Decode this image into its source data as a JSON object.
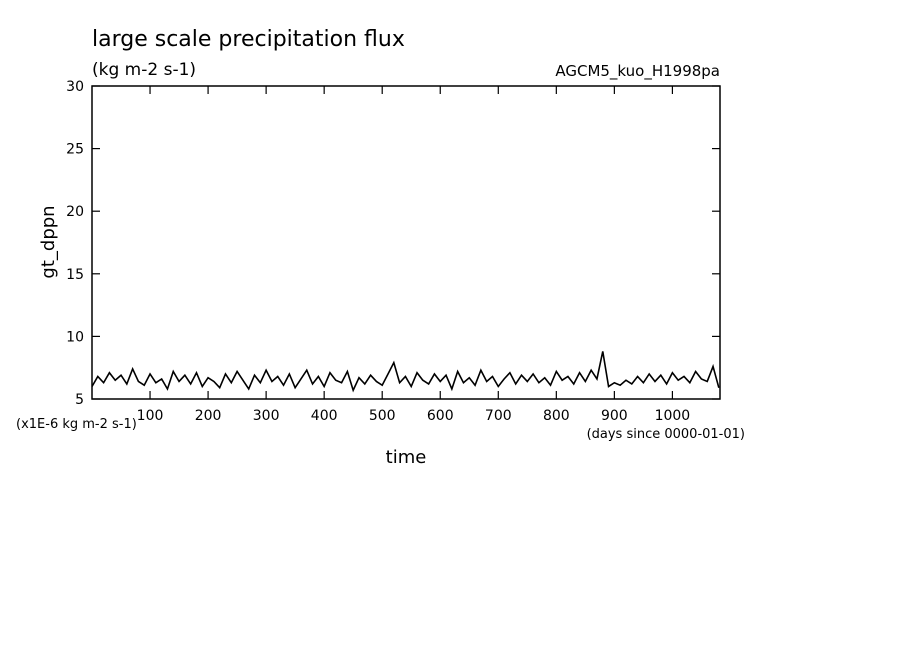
{
  "chart_data": {
    "type": "line",
    "title": "large scale precipitation flux",
    "subtitle": "(kg m-2 s-1)",
    "annotation": "AGCM5_kuo_H1998pa",
    "y_label": "gt_dppn",
    "x_label": "time",
    "y_unit_label": "(x1E-6 kg m-2 s-1)",
    "x_unit_label": "(days since 0000-01-01)",
    "xlim": [
      0,
      1082
    ],
    "ylim": [
      5,
      30
    ],
    "xticks": [
      100,
      200,
      300,
      400,
      500,
      600,
      700,
      800,
      900,
      1000
    ],
    "yticks": [
      5,
      10,
      15,
      20,
      25,
      30
    ],
    "color": "#000000",
    "x": [
      0,
      10,
      20,
      30,
      40,
      50,
      60,
      70,
      80,
      90,
      100,
      110,
      120,
      130,
      140,
      150,
      160,
      170,
      180,
      190,
      200,
      210,
      220,
      230,
      240,
      250,
      260,
      270,
      280,
      290,
      300,
      310,
      320,
      330,
      340,
      350,
      360,
      370,
      380,
      390,
      400,
      410,
      420,
      430,
      440,
      450,
      460,
      470,
      480,
      490,
      500,
      510,
      520,
      530,
      540,
      550,
      560,
      570,
      580,
      590,
      600,
      610,
      620,
      630,
      640,
      650,
      660,
      670,
      680,
      690,
      700,
      710,
      720,
      730,
      740,
      750,
      760,
      770,
      780,
      790,
      800,
      810,
      820,
      830,
      840,
      850,
      860,
      870,
      880,
      890,
      900,
      910,
      920,
      930,
      940,
      950,
      960,
      970,
      980,
      990,
      1000,
      1010,
      1020,
      1030,
      1040,
      1050,
      1060,
      1070,
      1080
    ],
    "values": [
      6.0,
      6.8,
      6.3,
      7.1,
      6.5,
      6.9,
      6.2,
      7.4,
      6.4,
      6.1,
      7.0,
      6.3,
      6.6,
      5.8,
      7.2,
      6.4,
      6.9,
      6.2,
      7.1,
      6.0,
      6.7,
      6.4,
      5.9,
      7.0,
      6.3,
      7.2,
      6.5,
      5.8,
      6.9,
      6.3,
      7.3,
      6.4,
      6.8,
      6.1,
      7.0,
      5.9,
      6.6,
      7.3,
      6.2,
      6.8,
      6.0,
      7.1,
      6.5,
      6.3,
      7.2,
      5.7,
      6.7,
      6.2,
      6.9,
      6.4,
      6.1,
      7.0,
      7.9,
      6.3,
      6.8,
      6.0,
      7.1,
      6.5,
      6.2,
      7.0,
      6.4,
      6.9,
      5.8,
      7.2,
      6.3,
      6.7,
      6.1,
      7.3,
      6.4,
      6.8,
      6.0,
      6.6,
      7.1,
      6.2,
      6.9,
      6.4,
      7.0,
      6.3,
      6.7,
      6.1,
      7.2,
      6.5,
      6.8,
      6.2,
      7.1,
      6.4,
      7.3,
      6.6,
      8.8,
      6.0,
      6.3,
      6.1,
      6.5,
      6.2,
      6.8,
      6.3,
      7.0,
      6.4,
      6.9,
      6.2,
      7.1,
      6.5,
      6.8,
      6.3,
      7.2,
      6.6,
      6.4,
      7.6,
      5.9
    ]
  }
}
